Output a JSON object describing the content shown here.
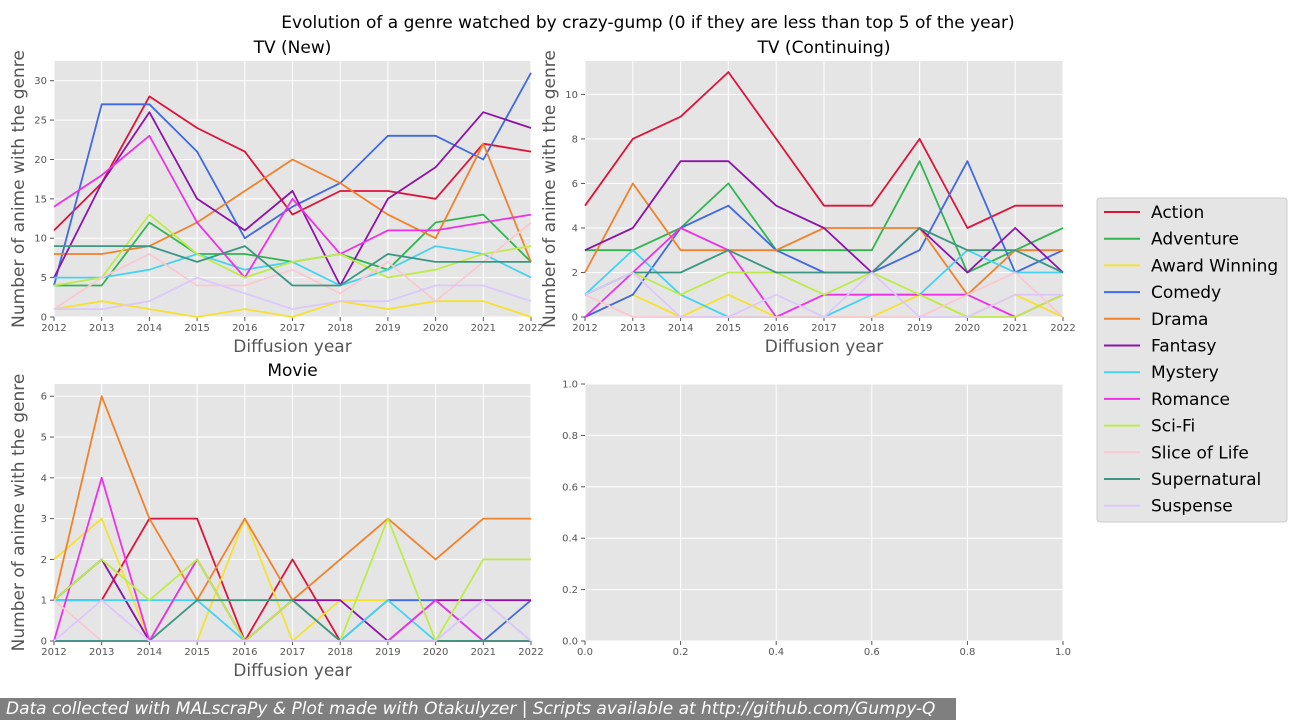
{
  "suptitle": "Evolution of a genre watched by crazy-gump (0 if they are less than top 5 of the year)",
  "footer": "Data collected with MALscraPy & Plot made with Otakulyzer | Scripts available at http://github.com/Gumpy-Q",
  "colors": {
    "Action": "#dc143c",
    "Adventure": "#32b450",
    "Award Winning": "#f5e132",
    "Comedy": "#4169e1",
    "Drama": "#f0822d",
    "Fantasy": "#8c14aa",
    "Mystery": "#46d2f0",
    "Romance": "#eb32e6",
    "Sci-Fi": "#beeb4b",
    "Slice of Life": "#fac8d2",
    "Supernatural": "#3c9682",
    "Suspense": "#dcc8fa"
  },
  "legend": {
    "placement": "right",
    "entries": [
      "Action",
      "Adventure",
      "Award Winning",
      "Comedy",
      "Drama",
      "Fantasy",
      "Mystery",
      "Romance",
      "Sci-Fi",
      "Slice of Life",
      "Supernatural",
      "Suspense"
    ]
  },
  "chart_data": [
    {
      "type": "line",
      "title": "TV (New)",
      "xlabel": "Diffusion year",
      "ylabel": "Number of anime with the genre",
      "grid": true,
      "x": [
        2012,
        2013,
        2014,
        2015,
        2016,
        2017,
        2018,
        2019,
        2020,
        2021,
        2022
      ],
      "xlim": [
        2012,
        2022
      ],
      "ylim": [
        0,
        32.5
      ],
      "yticks": [
        0,
        5,
        10,
        15,
        20,
        25,
        30
      ],
      "series": [
        {
          "name": "Action",
          "values": [
            11,
            17,
            28,
            24,
            21,
            13,
            16,
            16,
            15,
            22,
            21
          ]
        },
        {
          "name": "Adventure",
          "values": [
            4,
            4,
            12,
            8,
            8,
            7,
            8,
            6,
            12,
            13,
            7
          ]
        },
        {
          "name": "Award Winning",
          "values": [
            1,
            2,
            1,
            0,
            1,
            0,
            2,
            1,
            2,
            2,
            0
          ]
        },
        {
          "name": "Comedy",
          "values": [
            4,
            27,
            27,
            21,
            10,
            14,
            17,
            23,
            23,
            20,
            31
          ]
        },
        {
          "name": "Drama",
          "values": [
            8,
            8,
            9,
            12,
            16,
            20,
            17,
            13,
            10,
            22,
            7
          ]
        },
        {
          "name": "Fantasy",
          "values": [
            5,
            17,
            26,
            15,
            11,
            16,
            4,
            15,
            19,
            26,
            24
          ]
        },
        {
          "name": "Mystery",
          "values": [
            5,
            5,
            6,
            8,
            6,
            7,
            4,
            6,
            9,
            8,
            5
          ]
        },
        {
          "name": "Romance",
          "values": [
            14,
            18,
            23,
            12,
            5,
            15,
            8,
            11,
            11,
            12,
            13
          ]
        },
        {
          "name": "Sci-Fi",
          "values": [
            4,
            5,
            13,
            8,
            5,
            7,
            8,
            5,
            6,
            8,
            9
          ]
        },
        {
          "name": "Slice of Life",
          "values": [
            1,
            5,
            8,
            4,
            4,
            6,
            3,
            7,
            2,
            7,
            12
          ]
        },
        {
          "name": "Supernatural",
          "values": [
            9,
            9,
            9,
            7,
            9,
            4,
            4,
            8,
            7,
            7,
            7
          ]
        },
        {
          "name": "Suspense",
          "values": [
            1,
            1,
            2,
            5,
            3,
            1,
            2,
            2,
            4,
            4,
            2
          ]
        }
      ]
    },
    {
      "type": "line",
      "title": "TV (Continuing)",
      "xlabel": "Diffusion year",
      "ylabel": "Number of anime with the genre",
      "grid": true,
      "x": [
        2012,
        2013,
        2014,
        2015,
        2016,
        2017,
        2018,
        2019,
        2020,
        2021,
        2022
      ],
      "xlim": [
        2012,
        2022
      ],
      "ylim": [
        0,
        11.5
      ],
      "yticks": [
        0,
        2,
        4,
        6,
        8,
        10
      ],
      "series": [
        {
          "name": "Action",
          "values": [
            5,
            8,
            9,
            11,
            8,
            5,
            5,
            8,
            4,
            5,
            5
          ]
        },
        {
          "name": "Adventure",
          "values": [
            3,
            3,
            4,
            6,
            3,
            3,
            3,
            7,
            2,
            3,
            4
          ]
        },
        {
          "name": "Award Winning",
          "values": [
            0,
            1,
            0,
            1,
            0,
            0,
            0,
            1,
            0,
            1,
            0
          ]
        },
        {
          "name": "Comedy",
          "values": [
            0,
            1,
            4,
            5,
            3,
            2,
            2,
            3,
            7,
            2,
            3
          ]
        },
        {
          "name": "Drama",
          "values": [
            2,
            6,
            3,
            3,
            3,
            4,
            4,
            4,
            1,
            3,
            3
          ]
        },
        {
          "name": "Fantasy",
          "values": [
            3,
            4,
            7,
            7,
            5,
            4,
            2,
            4,
            2,
            4,
            2
          ]
        },
        {
          "name": "Mystery",
          "values": [
            1,
            3,
            1,
            0,
            0,
            0,
            1,
            1,
            3,
            2,
            2
          ]
        },
        {
          "name": "Romance",
          "values": [
            0,
            2,
            4,
            3,
            0,
            1,
            1,
            1,
            1,
            0,
            1
          ]
        },
        {
          "name": "Sci-Fi",
          "values": [
            1,
            2,
            1,
            2,
            2,
            1,
            2,
            1,
            0,
            0,
            1
          ]
        },
        {
          "name": "Slice of Life",
          "values": [
            1,
            0,
            0,
            0,
            0,
            0,
            0,
            0,
            1,
            2,
            0
          ]
        },
        {
          "name": "Supernatural",
          "values": [
            1,
            2,
            2,
            3,
            2,
            2,
            2,
            4,
            3,
            3,
            2
          ]
        },
        {
          "name": "Suspense",
          "values": [
            1,
            2,
            0,
            0,
            1,
            0,
            2,
            0,
            0,
            1,
            1
          ]
        }
      ]
    },
    {
      "type": "line",
      "title": "Movie",
      "xlabel": "Diffusion year",
      "ylabel": "Number of anime with the genre",
      "grid": true,
      "x": [
        2012,
        2013,
        2014,
        2015,
        2016,
        2017,
        2018,
        2019,
        2020,
        2021,
        2022
      ],
      "xlim": [
        2012,
        2022
      ],
      "ylim": [
        0,
        6.3
      ],
      "yticks": [
        0,
        1,
        2,
        3,
        4,
        5,
        6
      ],
      "series": [
        {
          "name": "Action",
          "values": [
            1,
            1,
            3,
            3,
            0,
            2,
            0,
            0,
            0,
            0,
            0
          ]
        },
        {
          "name": "Adventure",
          "values": [
            1,
            2,
            0,
            2,
            0,
            0,
            0,
            0,
            0,
            0,
            0
          ]
        },
        {
          "name": "Award Winning",
          "values": [
            2,
            3,
            0,
            0,
            3,
            0,
            1,
            1,
            1,
            1,
            1
          ]
        },
        {
          "name": "Comedy",
          "values": [
            0,
            0,
            0,
            0,
            0,
            0,
            0,
            1,
            1,
            0,
            1
          ]
        },
        {
          "name": "Drama",
          "values": [
            1,
            6,
            3,
            1,
            3,
            1,
            2,
            3,
            2,
            3,
            3
          ]
        },
        {
          "name": "Fantasy",
          "values": [
            1,
            2,
            0,
            0,
            0,
            1,
            1,
            0,
            1,
            1,
            1
          ]
        },
        {
          "name": "Mystery",
          "values": [
            1,
            1,
            1,
            1,
            0,
            0,
            0,
            1,
            0,
            1,
            0
          ]
        },
        {
          "name": "Romance",
          "values": [
            0,
            4,
            0,
            2,
            0,
            1,
            0,
            0,
            1,
            0,
            0
          ]
        },
        {
          "name": "Sci-Fi",
          "values": [
            1,
            2,
            1,
            2,
            0,
            1,
            0,
            3,
            0,
            2,
            2
          ]
        },
        {
          "name": "Slice of Life",
          "values": [
            1,
            0,
            0,
            0,
            0,
            0,
            0,
            0,
            0,
            1,
            0
          ]
        },
        {
          "name": "Supernatural",
          "values": [
            0,
            0,
            0,
            1,
            1,
            1,
            0,
            0,
            0,
            0,
            0
          ]
        },
        {
          "name": "Suspense",
          "values": [
            0,
            1,
            0,
            0,
            0,
            0,
            0,
            0,
            0,
            1,
            0
          ]
        }
      ]
    },
    {
      "type": "line",
      "title": "",
      "xlabel": "",
      "ylabel": "",
      "grid": true,
      "xlim": [
        0,
        1
      ],
      "ylim": [
        0,
        1
      ],
      "xticks": [
        0,
        0.2,
        0.4,
        0.6,
        0.8,
        1
      ],
      "yticks": [
        0,
        0.2,
        0.4,
        0.6,
        0.8,
        1
      ],
      "x": [],
      "series": []
    }
  ]
}
